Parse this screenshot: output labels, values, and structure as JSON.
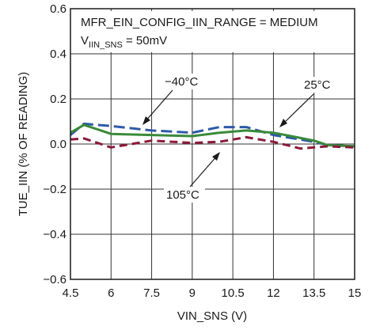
{
  "chart_data": {
    "type": "line",
    "title": "",
    "xlabel": "VIN_SNS (V)",
    "ylabel": "TUE_IIN (% OF READING)",
    "xlim": [
      4.5,
      15
    ],
    "ylim": [
      -0.6,
      0.6
    ],
    "x_ticks": [
      4.5,
      6,
      7.5,
      9,
      10.5,
      12,
      13.5,
      15
    ],
    "x_tick_labels": [
      "4.5",
      "6",
      "7.5",
      "9",
      "10.5",
      "12",
      "13.5",
      "15"
    ],
    "y_ticks": [
      -0.6,
      -0.4,
      -0.2,
      0.0,
      0.2,
      0.4,
      0.6
    ],
    "y_tick_labels": [
      "−0.6",
      "−0.4",
      "−0.2",
      "0.0",
      "0.2",
      "0.4",
      "0.6"
    ],
    "grid": true,
    "annotations": {
      "config_line": "MFR_EIN_CONFIG_IIN_RANGE = MEDIUM",
      "sense_prefix": "V",
      "sense_subscript": "IIN_SNS",
      "sense_value": " = 50mV"
    },
    "series": [
      {
        "name": "−40°C",
        "color": "#2e5aa8",
        "dash": "long-dash",
        "x": [
          4.5,
          5.0,
          6.0,
          7.5,
          9.0,
          10.0,
          11.0,
          12.0,
          13.5,
          14.0,
          15.0
        ],
        "y": [
          0.04,
          0.09,
          0.08,
          0.06,
          0.05,
          0.075,
          0.075,
          0.04,
          0.01,
          -0.005,
          -0.01
        ]
      },
      {
        "name": "25°C",
        "color": "#3a8a3a",
        "dash": "solid",
        "x": [
          4.5,
          5.0,
          6.0,
          7.5,
          9.0,
          10.0,
          11.0,
          12.0,
          13.5,
          14.0,
          15.0
        ],
        "y": [
          0.05,
          0.085,
          0.045,
          0.04,
          0.035,
          0.05,
          0.06,
          0.05,
          0.015,
          -0.005,
          -0.01
        ]
      },
      {
        "name": "105°C",
        "color": "#8b1a3a",
        "dash": "dash",
        "x": [
          4.5,
          5.0,
          6.0,
          7.5,
          9.0,
          10.0,
          11.0,
          12.0,
          13.0,
          14.0,
          15.0
        ],
        "y": [
          0.02,
          0.025,
          -0.015,
          0.015,
          0.005,
          0.01,
          0.03,
          0.01,
          -0.02,
          -0.01,
          -0.015
        ]
      }
    ],
    "series_labels": [
      "−40°C",
      "25°C",
      "105°C"
    ]
  }
}
